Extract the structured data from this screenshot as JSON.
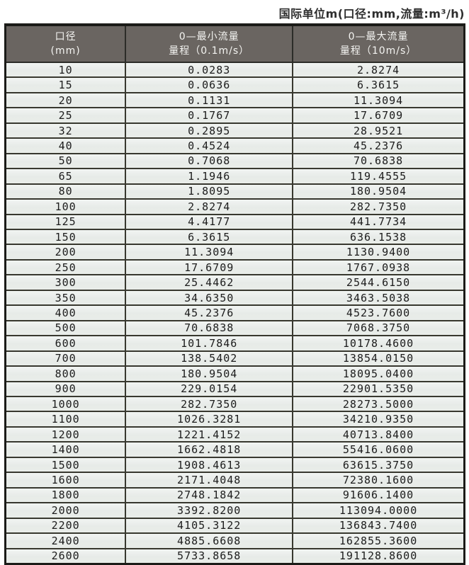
{
  "page_title": "国际单位m(口径:mm,流量:m³/h)",
  "colors": {
    "title_text": "#2e2e2e",
    "header_bg": "#6a6561",
    "header_text": "#f4f4f1",
    "border": "#38382f",
    "cell_bg": "#e9ede9"
  },
  "table": {
    "columns": [
      {
        "line1": "口径",
        "line2": "(mm)"
      },
      {
        "line1": "0—最小流量",
        "line2": "量程（0.1m/s）"
      },
      {
        "line1": "0—最大流量",
        "line2": "量程（10m/s）"
      }
    ],
    "rows": [
      {
        "diameter": "10",
        "min_flow": "0.0283",
        "max_flow": "2.8274"
      },
      {
        "diameter": "15",
        "min_flow": "0.0636",
        "max_flow": "6.3615"
      },
      {
        "diameter": "20",
        "min_flow": "0.1131",
        "max_flow": "11.3094"
      },
      {
        "diameter": "25",
        "min_flow": "0.1767",
        "max_flow": "17.6709"
      },
      {
        "diameter": "32",
        "min_flow": "0.2895",
        "max_flow": "28.9521"
      },
      {
        "diameter": "40",
        "min_flow": "0.4524",
        "max_flow": "45.2376"
      },
      {
        "diameter": "50",
        "min_flow": "0.7068",
        "max_flow": "70.6838"
      },
      {
        "diameter": "65",
        "min_flow": "1.1946",
        "max_flow": "119.4555"
      },
      {
        "diameter": "80",
        "min_flow": "1.8095",
        "max_flow": "180.9504"
      },
      {
        "diameter": "100",
        "min_flow": "2.8274",
        "max_flow": "282.7350"
      },
      {
        "diameter": "125",
        "min_flow": "4.4177",
        "max_flow": "441.7734"
      },
      {
        "diameter": "150",
        "min_flow": "6.3615",
        "max_flow": "636.1538"
      },
      {
        "diameter": "200",
        "min_flow": "11.3094",
        "max_flow": "1130.9400"
      },
      {
        "diameter": "250",
        "min_flow": "17.6709",
        "max_flow": "1767.0938"
      },
      {
        "diameter": "300",
        "min_flow": "25.4462",
        "max_flow": "2544.6150"
      },
      {
        "diameter": "350",
        "min_flow": "34.6350",
        "max_flow": "3463.5038"
      },
      {
        "diameter": "400",
        "min_flow": "45.2376",
        "max_flow": "4523.7600"
      },
      {
        "diameter": "500",
        "min_flow": "70.6838",
        "max_flow": "7068.3750"
      },
      {
        "diameter": "600",
        "min_flow": "101.7846",
        "max_flow": "10178.4600"
      },
      {
        "diameter": "700",
        "min_flow": "138.5402",
        "max_flow": "13854.0150"
      },
      {
        "diameter": "800",
        "min_flow": "180.9504",
        "max_flow": "18095.0400"
      },
      {
        "diameter": "900",
        "min_flow": "229.0154",
        "max_flow": "22901.5350"
      },
      {
        "diameter": "1000",
        "min_flow": "282.7350",
        "max_flow": "28273.5000"
      },
      {
        "diameter": "1100",
        "min_flow": "1026.3281",
        "max_flow": "34210.9350"
      },
      {
        "diameter": "1200",
        "min_flow": "1221.4152",
        "max_flow": "40713.8400"
      },
      {
        "diameter": "1400",
        "min_flow": "1662.4818",
        "max_flow": "55416.0600"
      },
      {
        "diameter": "1500",
        "min_flow": "1908.4613",
        "max_flow": "63615.3750"
      },
      {
        "diameter": "1600",
        "min_flow": "2171.4048",
        "max_flow": "72380.1600"
      },
      {
        "diameter": "1800",
        "min_flow": "2748.1842",
        "max_flow": "91606.1400"
      },
      {
        "diameter": "2000",
        "min_flow": "3392.8200",
        "max_flow": "113094.0000"
      },
      {
        "diameter": "2200",
        "min_flow": "4105.3122",
        "max_flow": "136843.7400"
      },
      {
        "diameter": "2400",
        "min_flow": "4885.6608",
        "max_flow": "162855.3600"
      },
      {
        "diameter": "2600",
        "min_flow": "5733.8658",
        "max_flow": "191128.8600"
      }
    ]
  },
  "chart_data": {
    "type": "table",
    "title": "国际单位m(口径:mm,流量:m³/h)",
    "columns": [
      "口径 (mm)",
      "0—最小流量 量程（0.1m/s）",
      "0—最大流量 量程（10m/s）"
    ],
    "diameters_mm": [
      10,
      15,
      20,
      25,
      32,
      40,
      50,
      65,
      80,
      100,
      125,
      150,
      200,
      250,
      300,
      350,
      400,
      500,
      600,
      700,
      800,
      900,
      1000,
      1100,
      1200,
      1400,
      1500,
      1600,
      1800,
      2000,
      2200,
      2400,
      2600
    ],
    "min_flow_m3h": [
      0.0283,
      0.0636,
      0.1131,
      0.1767,
      0.2895,
      0.4524,
      0.7068,
      1.1946,
      1.8095,
      2.8274,
      4.4177,
      6.3615,
      11.3094,
      17.6709,
      25.4462,
      34.635,
      45.2376,
      70.6838,
      101.7846,
      138.5402,
      180.9504,
      229.0154,
      282.735,
      1026.3281,
      1221.4152,
      1662.4818,
      1908.4613,
      2171.4048,
      2748.1842,
      3392.82,
      4105.3122,
      4885.6608,
      5733.8658
    ],
    "max_flow_m3h": [
      2.8274,
      6.3615,
      11.3094,
      17.6709,
      28.9521,
      45.2376,
      70.6838,
      119.4555,
      180.9504,
      282.735,
      441.7734,
      636.1538,
      1130.94,
      1767.0938,
      2544.615,
      3463.5038,
      4523.76,
      7068.375,
      10178.46,
      13854.015,
      18095.04,
      22901.535,
      28273.5,
      34210.935,
      40713.84,
      55416.06,
      63615.375,
      72380.16,
      91606.14,
      113094.0,
      136843.74,
      162855.36,
      191128.86
    ]
  }
}
